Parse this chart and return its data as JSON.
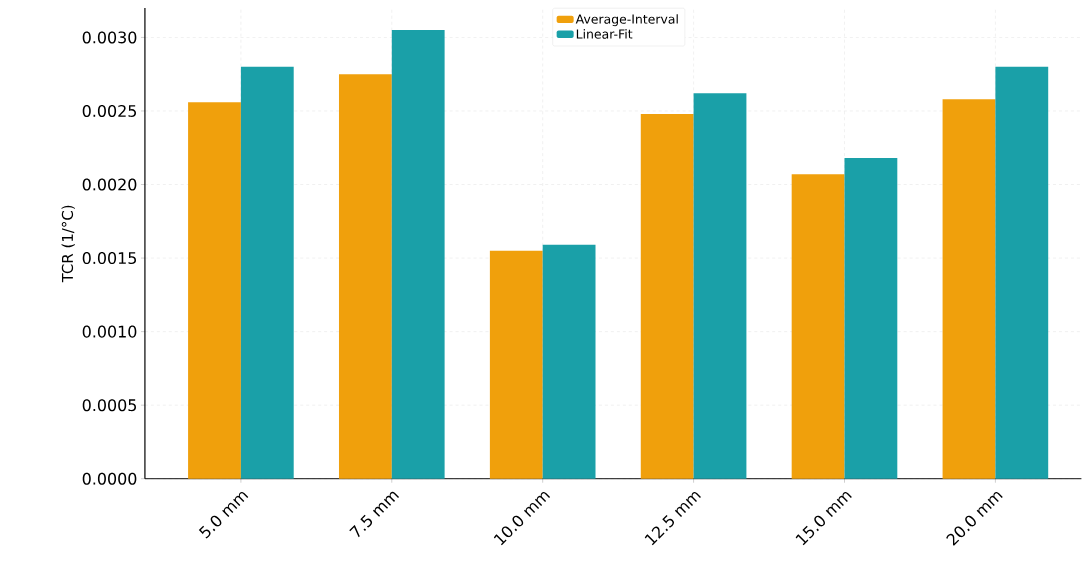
{
  "chart_data": {
    "type": "bar",
    "ylabel": "TCR (1/°C)",
    "categories": [
      "5.0 mm",
      "7.5 mm",
      "10.0 mm",
      "12.5 mm",
      "15.0 mm",
      "20.0 mm"
    ],
    "series": [
      {
        "name": "Average-Interval",
        "color": "#f0a00c",
        "values": [
          0.00256,
          0.00275,
          0.00155,
          0.00248,
          0.00207,
          0.00258
        ]
      },
      {
        "name": "Linear-Fit",
        "color": "#1aa0a8",
        "values": [
          0.0028,
          0.00305,
          0.00159,
          0.00262,
          0.00218,
          0.0028
        ]
      }
    ],
    "ylim": [
      0,
      0.0032
    ],
    "yticks": [
      {
        "value": 0,
        "label": "0.0000"
      },
      {
        "value": 0.0005,
        "label": "0.0005"
      },
      {
        "value": 0.001,
        "label": "0.0010"
      },
      {
        "value": 0.0015,
        "label": "0.0015"
      },
      {
        "value": 0.002,
        "label": "0.0020"
      },
      {
        "value": 0.0025,
        "label": "0.0025"
      },
      {
        "value": 0.003,
        "label": "0.0030"
      }
    ],
    "grid": true,
    "legend": "top"
  }
}
